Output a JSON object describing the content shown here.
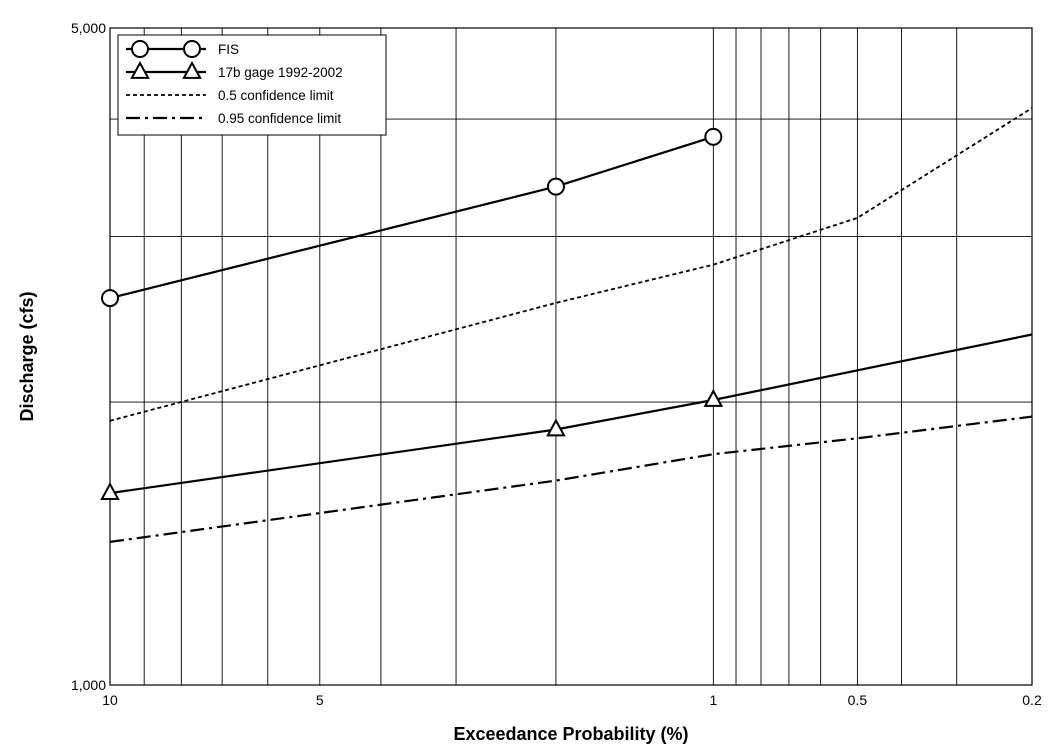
{
  "chart_data": {
    "type": "line",
    "title": "",
    "xlabel": "Exceedance Probability (%)",
    "ylabel": "Discharge (cfs)",
    "x_scale": "probability-log",
    "y_scale": "log",
    "xlim": [
      10,
      0.2
    ],
    "ylim": [
      1000,
      5000
    ],
    "x_ticks": [
      {
        "value": 10,
        "label": "10"
      },
      {
        "value": 5,
        "label": "5"
      },
      {
        "value": 1,
        "label": "1"
      },
      {
        "value": 0.5,
        "label": "0.5"
      },
      {
        "value": 0.2,
        "label": "0.2"
      }
    ],
    "y_ticks": [
      {
        "value": 1000,
        "label": "1,000"
      },
      {
        "value": 5000,
        "label": "5,000"
      }
    ],
    "x_gridlines": [
      10,
      9,
      8,
      7,
      6,
      5,
      4,
      3,
      2,
      1,
      0.9,
      0.8,
      0.7,
      0.6,
      0.5,
      0.4,
      0.3,
      0.2
    ],
    "y_gridlines": [
      1000,
      2000,
      3000,
      4000,
      5000
    ],
    "grid": true,
    "legend": {
      "position": "top-left"
    },
    "series": [
      {
        "name": "FIS",
        "style": "solid",
        "marker": "circle",
        "color": "#000000",
        "points": [
          [
            10,
            2580
          ],
          [
            2,
            3390
          ],
          [
            1,
            3830
          ]
        ]
      },
      {
        "name": "17b gage 1992-2002",
        "style": "solid",
        "marker": "triangle",
        "color": "#000000",
        "points": [
          [
            10,
            1600
          ],
          [
            2,
            1870
          ],
          [
            1,
            2010
          ],
          [
            0.2,
            2360
          ]
        ]
      },
      {
        "name": "0.5 confidence limit",
        "style": "dashed",
        "marker": "none",
        "color": "#000000",
        "points": [
          [
            10,
            1910
          ],
          [
            2,
            2550
          ],
          [
            1,
            2800
          ],
          [
            0.5,
            3140
          ],
          [
            0.2,
            4110
          ]
        ]
      },
      {
        "name": "0.95 confidence limit",
        "style": "dashdot",
        "marker": "none",
        "color": "#000000",
        "points": [
          [
            10,
            1420
          ],
          [
            2,
            1650
          ],
          [
            1,
            1760
          ],
          [
            0.5,
            1830
          ],
          [
            0.2,
            1930
          ]
        ]
      }
    ]
  }
}
